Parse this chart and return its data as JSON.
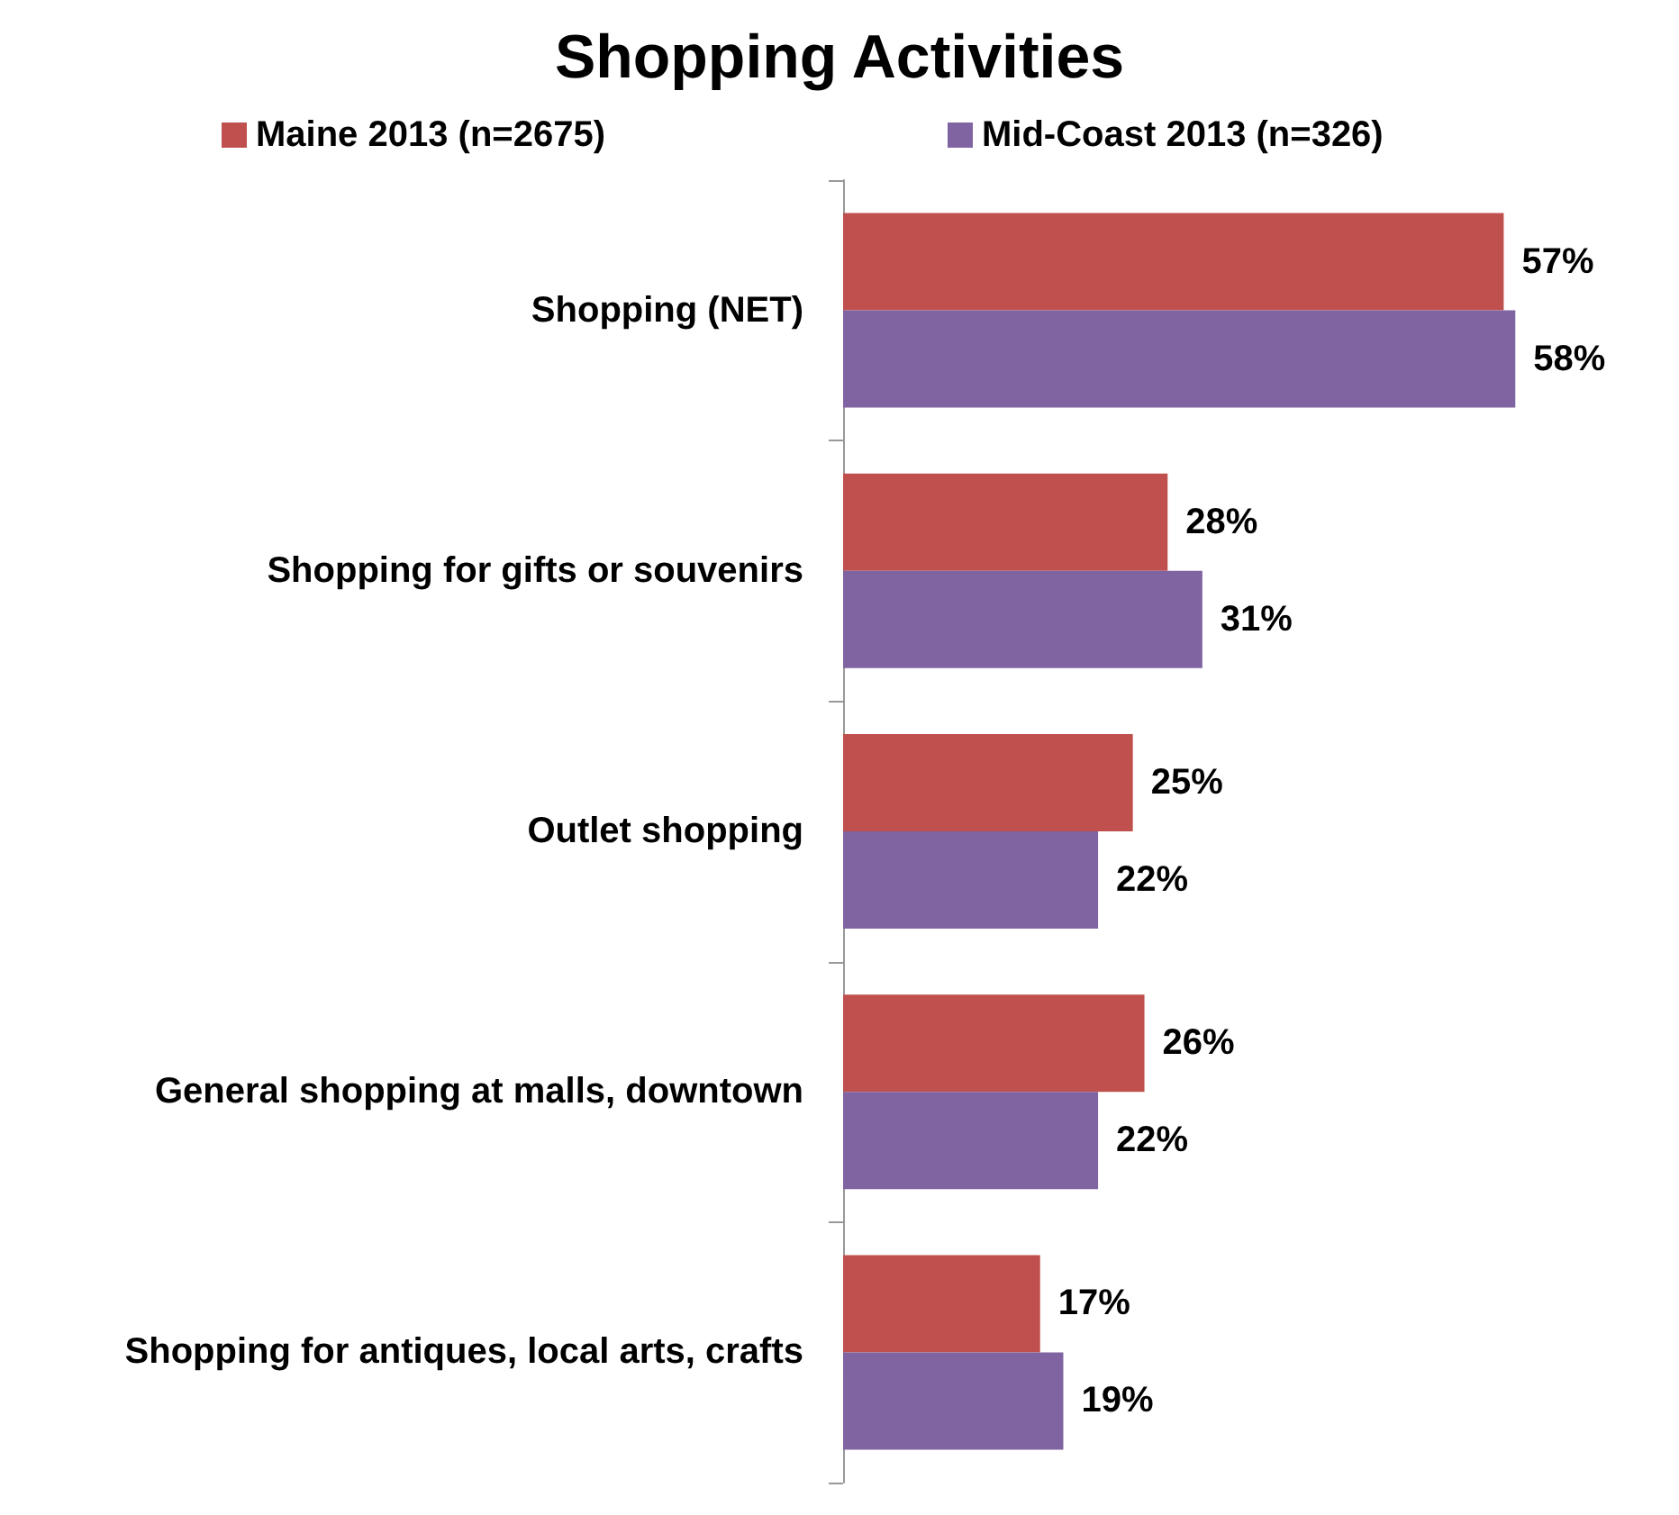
{
  "chart_data": {
    "type": "bar",
    "orientation": "horizontal",
    "title": "Shopping Activities",
    "categories": [
      "Shopping (NET)",
      "Shopping for gifts or souvenirs",
      "Outlet shopping",
      "General shopping at malls, downtown",
      "Shopping for antiques, local arts, crafts"
    ],
    "series": [
      {
        "name": "Maine 2013 (n=2675)",
        "color": "#c0504d",
        "values": [
          57,
          28,
          25,
          26,
          17
        ],
        "value_labels": [
          "57%",
          "28%",
          "25%",
          "26%",
          "17%"
        ]
      },
      {
        "name": "Mid-Coast 2013 (n=326)",
        "color": "#8064a2",
        "values": [
          58,
          31,
          22,
          22,
          19
        ],
        "value_labels": [
          "58%",
          "31%",
          "22%",
          "22%",
          "19%"
        ]
      }
    ],
    "legend": "top",
    "tick_labels": "y"
  }
}
